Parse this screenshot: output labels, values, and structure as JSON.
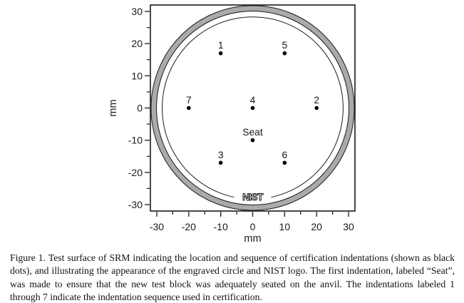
{
  "figure": {
    "caption": "Figure 1.  Test surface of SRM indicating the location and sequence of certification indentations (shown as black dots), and illustrating the appearance of the engraved circle and NIST logo.  The first indentation, labeled “Seat”, was made to ensure that the new test block was adequately seated on the anvil.  The indentations labeled 1 through 7 indicate the indentation sequence used in certification."
  },
  "chart_data": {
    "type": "scatter",
    "title": "",
    "xlabel": "mm",
    "ylabel": "mm",
    "xlim": [
      -32,
      32
    ],
    "ylim": [
      -32,
      32
    ],
    "x_major_ticks": [
      -30,
      -20,
      -10,
      0,
      10,
      20,
      30
    ],
    "y_major_ticks": [
      -30,
      -20,
      -10,
      0,
      10,
      20,
      30
    ],
    "minor_tick_step": 5,
    "grid": false,
    "legend": "none",
    "point_color": "#000000",
    "line_color": "#1a1a1a",
    "ring_fill": "#aaaaaa",
    "points": [
      {
        "label": "Seat",
        "x": 0,
        "y": -10
      },
      {
        "label": "1",
        "x": -10,
        "y": 17
      },
      {
        "label": "2",
        "x": 20,
        "y": 0
      },
      {
        "label": "3",
        "x": -10,
        "y": -17
      },
      {
        "label": "4",
        "x": 0,
        "y": 0
      },
      {
        "label": "5",
        "x": 10,
        "y": 17
      },
      {
        "label": "6",
        "x": 10,
        "y": -17
      },
      {
        "label": "7",
        "x": -20,
        "y": 0
      }
    ],
    "engraved_ring": {
      "outer_radius_mm": 31.8,
      "inner_radius_mm": 30.1
    },
    "engraved_circle_radius_mm": 28.3,
    "logo": {
      "text": "NIST",
      "x": 0,
      "y": -27.6
    }
  }
}
